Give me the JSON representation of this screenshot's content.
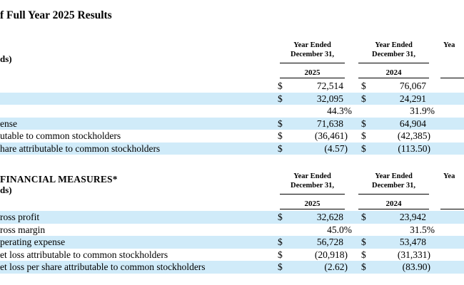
{
  "title": "f Full Year 2025 Results",
  "colors": {
    "stripe": "#d0ebf9",
    "text": "#000000",
    "background": "#ffffff"
  },
  "sections": [
    {
      "heading": "",
      "units": "ds)",
      "columns": [
        {
          "period_line1": "Year Ended",
          "period_line2": "December 31,",
          "year": "2025"
        },
        {
          "period_line1": "Year Ended",
          "period_line2": "December 31,",
          "year": "2024"
        },
        {
          "period_line1": "Yea",
          "period_line2": "",
          "year": ""
        }
      ],
      "rows": [
        {
          "label": "",
          "currency1": "$",
          "value1": "72,514",
          "currency2": "$",
          "value2": "76,067"
        },
        {
          "label": "",
          "currency1": "$",
          "value1": "32,095",
          "currency2": "$",
          "value2": "24,291"
        },
        {
          "label": "",
          "currency1": "",
          "value1": "44.3%",
          "currency2": "",
          "value2": "31.9%"
        },
        {
          "label": "ense",
          "currency1": "$",
          "value1": "71,638",
          "currency2": "$",
          "value2": "64,904"
        },
        {
          "label": "utable to common stockholders",
          "currency1": "$",
          "value1": "(36,461)",
          "currency2": "$",
          "value2": "(42,385)"
        },
        {
          "label": "hare attributable to common stockholders",
          "currency1": "$",
          "value1": "(4.57)",
          "currency2": "$",
          "value2": "(113.50)"
        }
      ]
    },
    {
      "heading": "FINANCIAL MEASURES*",
      "units": "ds)",
      "columns": [
        {
          "period_line1": "Year Ended",
          "period_line2": "December 31,",
          "year": "2025"
        },
        {
          "period_line1": "Year Ended",
          "period_line2": "December 31,",
          "year": "2024"
        },
        {
          "period_line1": "Yea",
          "period_line2": "",
          "year": ""
        }
      ],
      "rows": [
        {
          "label": "ross profit",
          "currency1": "$",
          "value1": "32,628",
          "currency2": "$",
          "value2": "23,942"
        },
        {
          "label": "ross margin",
          "currency1": "",
          "value1": "45.0%",
          "currency2": "",
          "value2": "31.5%"
        },
        {
          "label": "perating expense",
          "currency1": "$",
          "value1": "56,728",
          "currency2": "$",
          "value2": "53,478"
        },
        {
          "label": "et loss attributable to common stockholders",
          "currency1": "$",
          "value1": "(20,918)",
          "currency2": "$",
          "value2": "(31,331)"
        },
        {
          "label": "et loss per share attributable to common stockholders",
          "currency1": "$",
          "value1": "(2.62)",
          "currency2": "$",
          "value2": "(83.90)"
        }
      ]
    }
  ]
}
